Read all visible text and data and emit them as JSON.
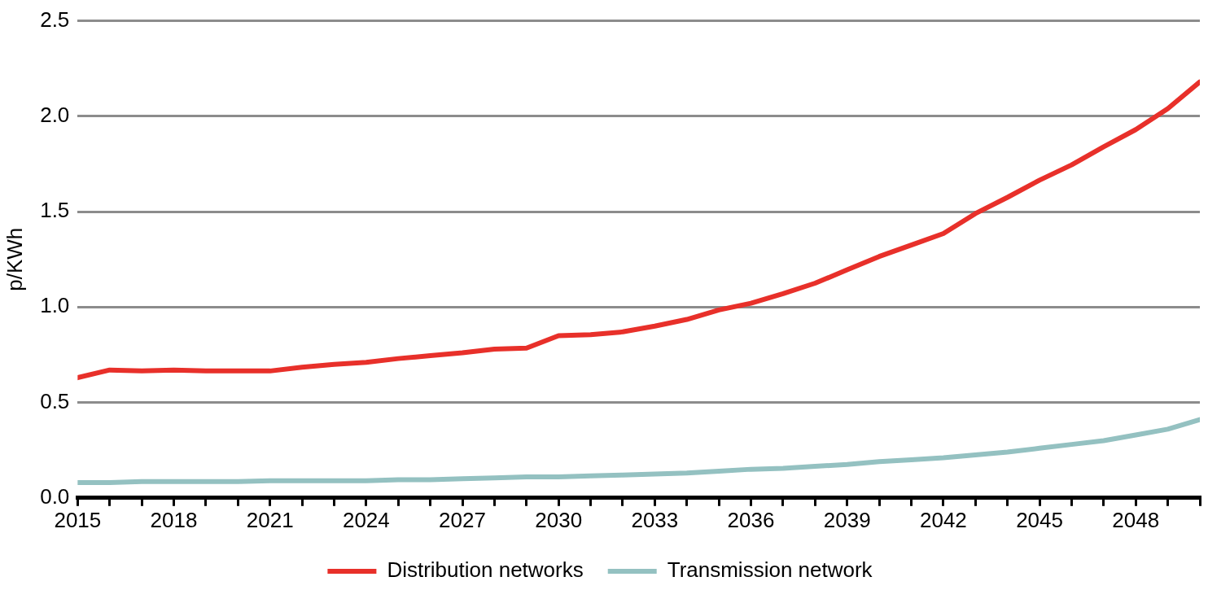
{
  "chart_data": {
    "type": "line",
    "ylabel": "p/KWh",
    "x": [
      2015,
      2016,
      2017,
      2018,
      2019,
      2020,
      2021,
      2022,
      2023,
      2024,
      2025,
      2026,
      2027,
      2028,
      2029,
      2030,
      2031,
      2032,
      2033,
      2034,
      2035,
      2036,
      2037,
      2038,
      2039,
      2040,
      2041,
      2042,
      2043,
      2044,
      2045,
      2046,
      2047,
      2048,
      2049,
      2050
    ],
    "xlim": [
      2015,
      2050
    ],
    "xticks": [
      2015,
      {
        "value": 2016,
        "label": null
      },
      {
        "value": 2017,
        "label": null
      },
      2018,
      {
        "value": 2019,
        "label": null
      },
      {
        "value": 2020,
        "label": null
      },
      2021,
      {
        "value": 2022,
        "label": null
      },
      {
        "value": 2023,
        "label": null
      },
      2024,
      {
        "value": 2025,
        "label": null
      },
      {
        "value": 2026,
        "label": null
      },
      2027,
      {
        "value": 2028,
        "label": null
      },
      {
        "value": 2029,
        "label": null
      },
      2030,
      {
        "value": 2031,
        "label": null
      },
      {
        "value": 2032,
        "label": null
      },
      2033,
      {
        "value": 2034,
        "label": null
      },
      {
        "value": 2035,
        "label": null
      },
      2036,
      {
        "value": 2037,
        "label": null
      },
      {
        "value": 2038,
        "label": null
      },
      2039,
      {
        "value": 2040,
        "label": null
      },
      {
        "value": 2041,
        "label": null
      },
      2042,
      {
        "value": 2043,
        "label": null
      },
      {
        "value": 2044,
        "label": null
      },
      2045,
      {
        "value": 2046,
        "label": null
      },
      {
        "value": 2047,
        "label": null
      },
      2048,
      {
        "value": 2049,
        "label": null
      },
      {
        "value": 2050,
        "label": null
      }
    ],
    "ylim": [
      0,
      2.5
    ],
    "yticks": [
      {
        "value": 0,
        "label": "0.0"
      },
      {
        "value": 0.5,
        "label": "0.5"
      },
      {
        "value": 1,
        "label": "1.0"
      },
      {
        "value": 1.5,
        "label": "1.5"
      },
      {
        "value": 2,
        "label": "2.0"
      },
      {
        "value": 2.5,
        "label": "2.5"
      }
    ],
    "grid": "y",
    "legend": "bottom",
    "marker": "none",
    "line_style": "solid",
    "series": [
      {
        "name": "Distribution networks",
        "color": "#e8302a",
        "values": [
          0.63,
          0.67,
          0.665,
          0.67,
          0.665,
          0.665,
          0.665,
          0.685,
          0.7,
          0.71,
          0.73,
          0.745,
          0.76,
          0.78,
          0.785,
          0.85,
          0.855,
          0.87,
          0.9,
          0.935,
          0.985,
          1.02,
          1.07,
          1.125,
          1.195,
          1.265,
          1.325,
          1.385,
          1.49,
          1.575,
          1.665,
          1.745,
          1.84,
          1.93,
          2.04,
          2.18
        ]
      },
      {
        "name": "Transmission network",
        "color": "#94c1c1",
        "values": [
          0.08,
          0.08,
          0.085,
          0.085,
          0.085,
          0.085,
          0.09,
          0.09,
          0.09,
          0.09,
          0.095,
          0.095,
          0.1,
          0.105,
          0.11,
          0.11,
          0.115,
          0.12,
          0.125,
          0.13,
          0.14,
          0.15,
          0.155,
          0.165,
          0.175,
          0.19,
          0.2,
          0.21,
          0.225,
          0.24,
          0.26,
          0.28,
          0.3,
          0.33,
          0.36,
          0.41
        ]
      }
    ]
  }
}
